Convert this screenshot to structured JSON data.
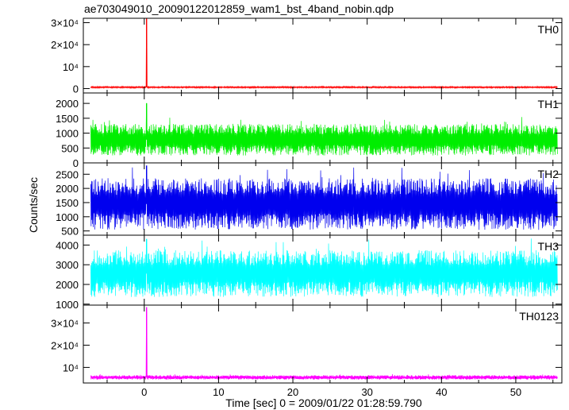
{
  "chart_data": {
    "type": "line",
    "title": "ae703049010_20090122012859_wam1_bst_4band_nobin.qdp",
    "xlabel": "Time [sec] 0 = 2009/01/22 01:28:59.790",
    "ylabel": "Counts/sec",
    "xlim": [
      -8.2,
      56.2
    ],
    "x_ticks": [
      0,
      10,
      20,
      30,
      40,
      50
    ],
    "x_tick_labels": [
      "0",
      "10",
      "20",
      "30",
      "40",
      "50"
    ],
    "grid": false,
    "burst_time": 0.3,
    "panels": [
      {
        "label": "TH0",
        "color": "#ff0000",
        "ylim": [
          -2000,
          32000
        ],
        "ticks": [
          0,
          10000,
          20000,
          30000
        ],
        "tick_labels": [
          "0",
          "10⁴",
          "2×10⁴",
          "3×10⁴"
        ],
        "baseline": 600,
        "noise": 250,
        "peak": 32000
      },
      {
        "label": "TH1",
        "color": "#00ee00",
        "ylim": [
          0,
          2350
        ],
        "ticks": [
          0,
          500,
          1000,
          1500,
          2000
        ],
        "tick_labels": [
          "0",
          "500",
          "1000",
          "1500",
          "2000"
        ],
        "baseline": 780,
        "noise": 380,
        "peak": 2000
      },
      {
        "label": "TH2",
        "color": "#0000ee",
        "ylim": [
          350,
          2900
        ],
        "ticks": [
          500,
          1000,
          1500,
          2000,
          2500
        ],
        "tick_labels": [
          "500",
          "1000",
          "1500",
          "2000",
          "2500"
        ],
        "baseline": 1450,
        "noise": 650,
        "peak": 2800
      },
      {
        "label": "TH3",
        "color": "#00ffff",
        "ylim": [
          950,
          4500
        ],
        "ticks": [
          1000,
          2000,
          3000,
          4000
        ],
        "tick_labels": [
          "1000",
          "2000",
          "3000",
          "4000"
        ],
        "baseline": 2550,
        "noise": 850,
        "peak": 4300
      },
      {
        "label": "TH0123",
        "color": "#ff00ff",
        "ylim": [
          3000,
          38000
        ],
        "ticks": [
          10000,
          20000,
          30000
        ],
        "tick_labels": [
          "10⁴",
          "2×10⁴",
          "3×10⁴"
        ],
        "baseline": 5500,
        "noise": 700,
        "peak": 37000
      }
    ]
  }
}
